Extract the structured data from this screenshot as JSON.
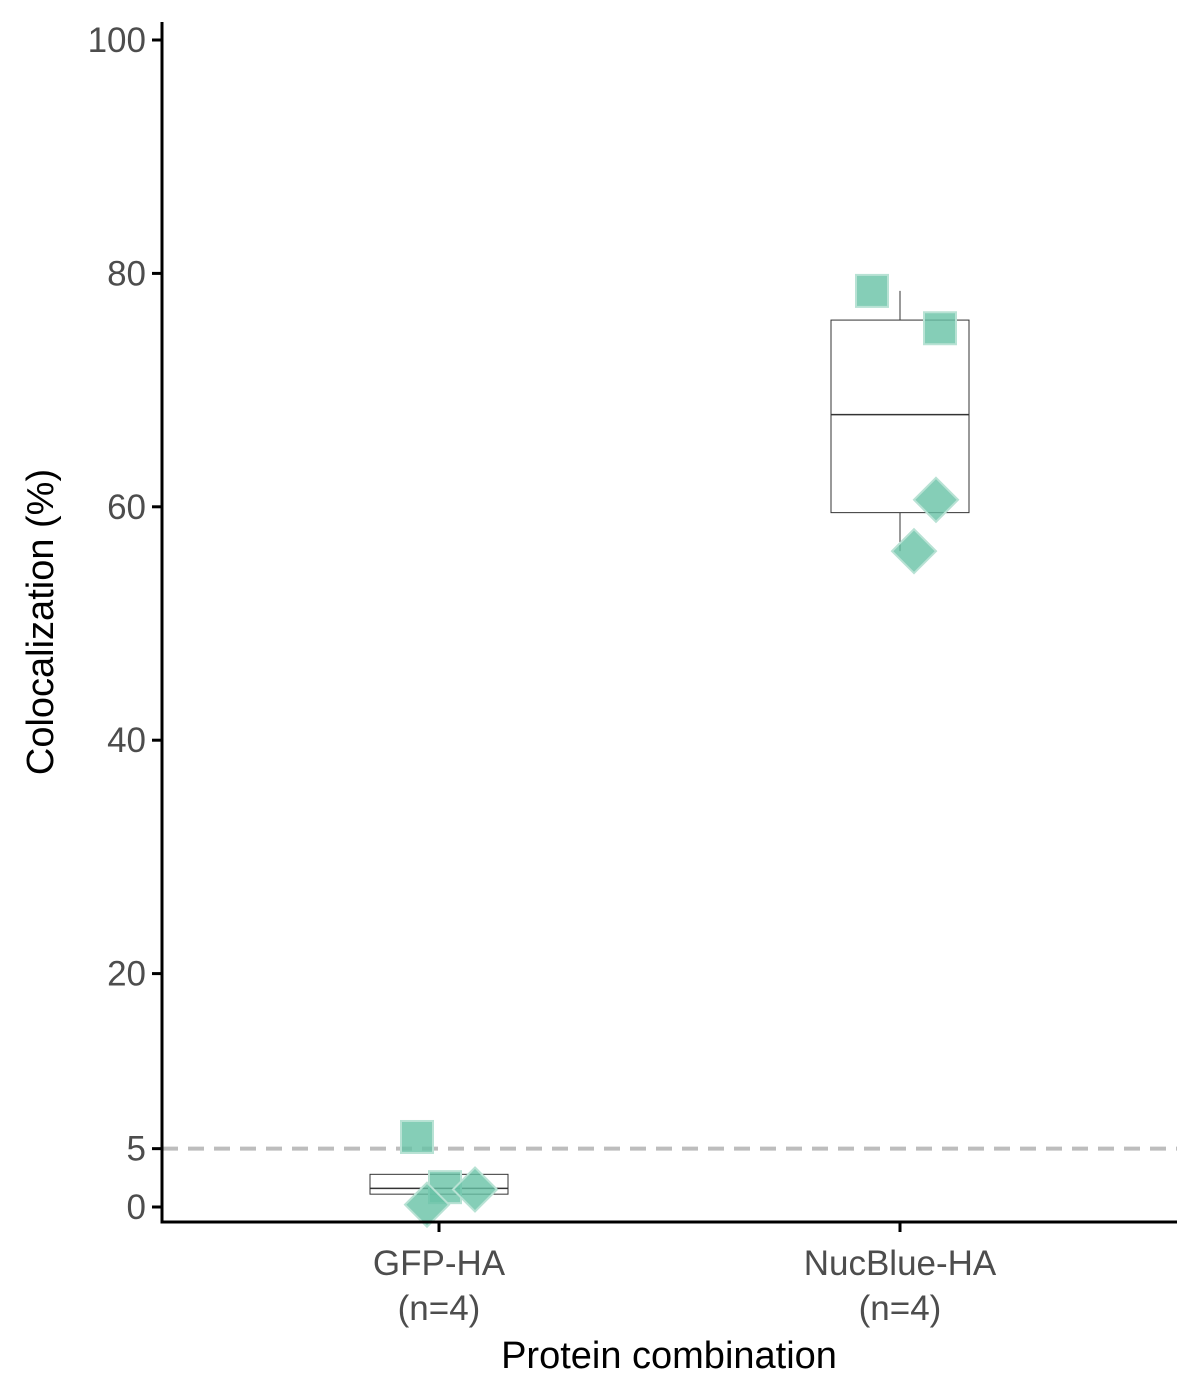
{
  "chart_data": {
    "type": "box",
    "xlabel": "Protein combination",
    "ylabel": "Colocalization (%)",
    "y_ticks": [
      0,
      5,
      20,
      40,
      60,
      80,
      100
    ],
    "y_axis_breaks": "0, 5, 20, 40, 60, 80, 100",
    "reference_line": {
      "y": 5,
      "style": "dashed",
      "color": "#bdbdbd"
    },
    "point_color": "#66c2a5",
    "categories": [
      {
        "label": "GFP-HA",
        "n_label": "(n=4)",
        "box": {
          "q1": 1.1,
          "median": 1.6,
          "q3": 2.8,
          "whisker_low": 1.1,
          "whisker_high": 2.8
        },
        "points": [
          {
            "shape": "square",
            "y": 6.0
          },
          {
            "shape": "square",
            "y": 1.7
          },
          {
            "shape": "diamond",
            "y": 1.5
          },
          {
            "shape": "diamond",
            "y": 0.2
          }
        ]
      },
      {
        "label": "NucBlue-HA",
        "n_label": "(n=4)",
        "box": {
          "q1": 59.5,
          "median": 67.9,
          "q3": 76.0,
          "whisker_low": 56.2,
          "whisker_high": 78.5
        },
        "points": [
          {
            "shape": "square",
            "y": 78.5
          },
          {
            "shape": "square",
            "y": 75.3
          },
          {
            "shape": "diamond",
            "y": 60.6
          },
          {
            "shape": "diamond",
            "y": 56.2
          }
        ]
      }
    ]
  }
}
